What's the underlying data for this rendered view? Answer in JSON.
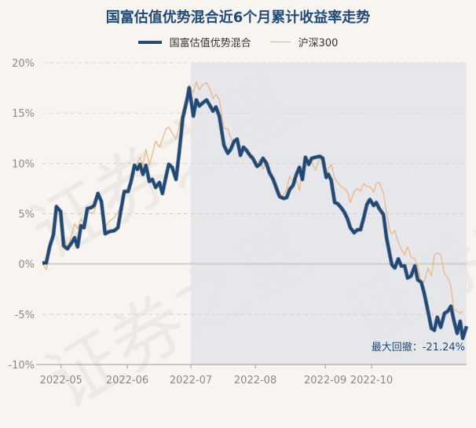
{
  "title": "国富估值优势混合近6个月累计收益率走势",
  "legend": {
    "fund": "国富估值优势混合",
    "index": "沪深300"
  },
  "colors": {
    "fund": "#1e4a7a",
    "index": "#f0b27a",
    "shade": "#e2e6ea",
    "background": "#f8f5f1",
    "grid": "#d6d3cf",
    "axis_text": "#8a8a8a"
  },
  "watermark": "证券之星",
  "max_drawdown": {
    "label": "最大回撤：",
    "value": "-21.24%"
  },
  "chart_data": {
    "type": "line",
    "title": "国富估值优势混合近6个月累计收益率走势",
    "xlabel": "",
    "ylabel": "",
    "ylim": [
      -10,
      20
    ],
    "yticks": [
      "20%",
      "15%",
      "10%",
      "5%",
      "0%",
      "-5%",
      "-10%"
    ],
    "ytick_values": [
      20,
      15,
      10,
      5,
      0,
      -5,
      -10
    ],
    "xticks": [
      "2022-05",
      "2022-06",
      "2022-07",
      "2022-08",
      "2022-09",
      "2022-10"
    ],
    "xtick_pos": [
      0.044,
      0.2,
      0.35,
      0.502,
      0.667,
      0.776
    ],
    "grid": true,
    "legend_position": "top",
    "drawdown_shade_start": 0.35,
    "x": [
      0.0,
      0.009,
      0.017,
      0.026,
      0.033,
      0.043,
      0.05,
      0.059,
      0.069,
      0.076,
      0.083,
      0.091,
      0.098,
      0.106,
      0.115,
      0.122,
      0.131,
      0.139,
      0.148,
      0.157,
      0.169,
      0.178,
      0.187,
      0.193,
      0.202,
      0.209,
      0.217,
      0.224,
      0.23,
      0.237,
      0.244,
      0.252,
      0.259,
      0.267,
      0.276,
      0.283,
      0.291,
      0.298,
      0.306,
      0.315,
      0.322,
      0.331,
      0.341,
      0.346,
      0.356,
      0.363,
      0.37,
      0.378,
      0.387,
      0.394,
      0.402,
      0.409,
      0.417,
      0.428,
      0.437,
      0.444,
      0.452,
      0.459,
      0.467,
      0.474,
      0.481,
      0.489,
      0.496,
      0.506,
      0.513,
      0.52,
      0.528,
      0.535,
      0.544,
      0.552,
      0.559,
      0.569,
      0.576,
      0.583,
      0.591,
      0.598,
      0.606,
      0.613,
      0.62,
      0.628,
      0.635,
      0.644,
      0.654,
      0.661,
      0.669,
      0.674,
      0.681,
      0.689,
      0.696,
      0.704,
      0.711,
      0.719,
      0.726,
      0.735,
      0.743,
      0.75,
      0.757,
      0.765,
      0.772,
      0.781,
      0.787,
      0.794,
      0.804,
      0.811,
      0.819,
      0.824,
      0.831,
      0.839,
      0.846,
      0.854,
      0.861,
      0.869,
      0.878,
      0.885,
      0.893,
      0.9,
      0.909,
      0.917,
      0.924,
      0.931,
      0.939,
      0.948,
      0.956,
      0.963,
      0.97,
      0.978,
      0.985,
      0.991,
      1.0
    ],
    "series": [
      {
        "name": "国富估值优势混合",
        "values": [
          0.1,
          0.1,
          1.7,
          2.9,
          5.7,
          5.2,
          1.8,
          1.5,
          2.1,
          2.6,
          1.7,
          3.8,
          3.6,
          5.5,
          5.6,
          5.8,
          7.0,
          6.2,
          3.0,
          3.2,
          3.3,
          3.6,
          5.8,
          7.2,
          7.2,
          8.2,
          9.8,
          9.4,
          9.9,
          8.9,
          9.8,
          8.2,
          8.4,
          7.6,
          8.1,
          7.0,
          8.6,
          9.9,
          9.6,
          8.4,
          10.9,
          14.5,
          16.3,
          17.5,
          14.7,
          16.3,
          15.7,
          16.0,
          16.3,
          15.8,
          15.2,
          15.6,
          14.7,
          11.8,
          11.0,
          11.4,
          12.2,
          12.4,
          10.8,
          11.6,
          11.3,
          10.8,
          10.5,
          9.7,
          9.9,
          10.5,
          10.0,
          9.1,
          8.4,
          7.5,
          6.7,
          6.5,
          6.6,
          7.4,
          7.8,
          8.8,
          9.6,
          8.4,
          10.6,
          9.9,
          10.5,
          10.6,
          10.7,
          10.5,
          8.6,
          8.9,
          8.3,
          6.1,
          6.0,
          5.6,
          5.2,
          4.5,
          3.6,
          3.1,
          3.4,
          3.4,
          4.5,
          5.9,
          6.4,
          5.8,
          6.1,
          5.5,
          4.9,
          2.7,
          0.9,
          -0.1,
          -0.4,
          0.5,
          -0.2,
          -0.2,
          -1.4,
          -1.2,
          -0.2,
          -1.6,
          -1.8,
          -2.9,
          -4.7,
          -6.4,
          -6.6,
          -5.3,
          -6.3,
          -4.9,
          -4.7,
          -4.2,
          -5.6,
          -6.9,
          -5.7,
          -7.4,
          -6.2
        ]
      },
      {
        "name": "沪深300",
        "values": [
          0.1,
          -0.6,
          1.5,
          3.0,
          5.6,
          5.0,
          2.9,
          1.6,
          2.9,
          4.0,
          3.5,
          4.5,
          3.8,
          5.4,
          5.0,
          5.2,
          6.9,
          6.4,
          3.7,
          4.2,
          4.6,
          5.1,
          6.0,
          7.2,
          7.2,
          7.9,
          9.8,
          10.0,
          10.6,
          9.8,
          11.4,
          9.8,
          10.9,
          12.2,
          11.6,
          12.4,
          13.4,
          13.6,
          13.0,
          12.4,
          13.6,
          15.3,
          16.9,
          17.8,
          17.0,
          18.1,
          17.3,
          17.8,
          18.0,
          17.5,
          16.4,
          16.9,
          16.3,
          13.5,
          13.4,
          12.5,
          11.9,
          12.2,
          11.3,
          11.7,
          11.2,
          10.5,
          10.8,
          9.9,
          10.4,
          9.4,
          10.3,
          9.7,
          8.2,
          6.9,
          6.7,
          6.9,
          7.4,
          8.7,
          8.2,
          8.5,
          7.3,
          9.3,
          9.7,
          9.9,
          10.1,
          9.3,
          10.7,
          9.9,
          8.6,
          9.5,
          9.9,
          8.5,
          8.1,
          7.7,
          7.5,
          7.2,
          6.1,
          7.2,
          7.5,
          7.2,
          8.0,
          7.7,
          7.7,
          7.1,
          8.0,
          8.1,
          7.0,
          5.2,
          3.3,
          3.0,
          3.3,
          2.1,
          1.5,
          0.9,
          1.7,
          0.7,
          0.5,
          -0.2,
          -1.9,
          -1.8,
          -0.4,
          -1.2,
          0.9,
          1.1,
          0.9,
          -1.0,
          -1.4,
          -2.2,
          -4.5,
          -4.7,
          -4.9,
          -4.7
        ]
      }
    ],
    "annotation": "最大回撤：-21.24%"
  }
}
